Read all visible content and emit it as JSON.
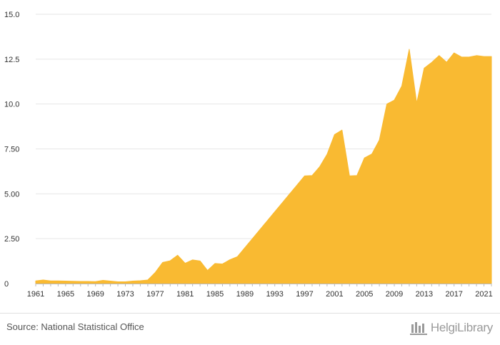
{
  "chart_data": {
    "type": "area",
    "title": "",
    "xlabel": "",
    "ylabel": "",
    "color": "#F9BA32",
    "ylim": [
      0,
      15
    ],
    "xlim": [
      1961,
      2022
    ],
    "grid": true,
    "y_ticks": [
      "0",
      "2.50",
      "5.00",
      "7.50",
      "10.0",
      "12.5",
      "15.0"
    ],
    "x_ticks": [
      "1961",
      "1965",
      "1969",
      "1973",
      "1977",
      "1981",
      "1985",
      "1989",
      "1993",
      "1997",
      "2001",
      "2005",
      "2009",
      "2013",
      "2017",
      "2021"
    ],
    "x": [
      1961,
      1962,
      1963,
      1964,
      1965,
      1966,
      1967,
      1968,
      1969,
      1970,
      1971,
      1972,
      1973,
      1974,
      1975,
      1976,
      1977,
      1978,
      1979,
      1980,
      1981,
      1982,
      1983,
      1984,
      1985,
      1986,
      1987,
      1988,
      1989,
      1990,
      1991,
      1992,
      1993,
      1994,
      1995,
      1996,
      1997,
      1998,
      1999,
      2000,
      2001,
      2002,
      2003,
      2004,
      2005,
      2006,
      2007,
      2008,
      2009,
      2010,
      2011,
      2012,
      2013,
      2014,
      2015,
      2016,
      2017,
      2018,
      2019,
      2020,
      2021,
      2022
    ],
    "values": [
      0.15,
      0.2,
      0.15,
      0.15,
      0.14,
      0.13,
      0.12,
      0.12,
      0.11,
      0.18,
      0.14,
      0.1,
      0.1,
      0.14,
      0.16,
      0.2,
      0.62,
      1.18,
      1.27,
      1.58,
      1.13,
      1.32,
      1.26,
      0.73,
      1.12,
      1.09,
      1.33,
      1.5,
      2.0,
      2.5,
      3.0,
      3.5,
      4.0,
      4.5,
      5.0,
      5.5,
      6.0,
      6.02,
      6.5,
      7.2,
      8.3,
      8.55,
      6.0,
      6.02,
      7.0,
      7.22,
      8.0,
      10.0,
      10.22,
      11.0,
      13.05,
      10.05,
      12.0,
      12.32,
      12.7,
      12.33,
      12.85,
      12.62,
      12.62,
      12.7,
      12.65,
      12.65
    ]
  },
  "footer": {
    "source": "Source: National Statistical Office",
    "brand": "HelgiLibrary"
  }
}
